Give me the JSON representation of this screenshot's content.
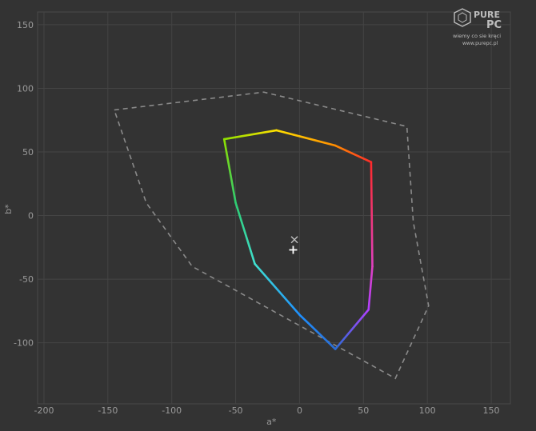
{
  "chart_data": {
    "type": "line",
    "xlabel": "a*",
    "ylabel": "b*",
    "xlim": [
      -205,
      165
    ],
    "ylim": [
      -148,
      160
    ],
    "xticks": [
      -200,
      -150,
      -100,
      -50,
      0,
      50,
      100,
      150
    ],
    "yticks": [
      150,
      100,
      50,
      0,
      -50,
      -100
    ],
    "grid": true,
    "series": [
      {
        "style": "dashed",
        "color": "#8a8a8a",
        "points": [
          [
            -145,
            83
          ],
          [
            -28,
            97
          ],
          [
            84,
            70
          ],
          [
            89,
            -5
          ],
          [
            101,
            -71
          ],
          [
            75,
            -128
          ],
          [
            -84,
            -40
          ],
          [
            -120,
            10
          ],
          [
            -145,
            83
          ]
        ]
      },
      {
        "style": "gradient",
        "colors": [
          "#ff2a2a",
          "#ff8c00",
          "#ffe000",
          "#8ee000",
          "#2ecc71",
          "#40e0d0",
          "#1e90ff",
          "#2a6dd6",
          "#b040ff",
          "#e040c0",
          "#ff2a2a"
        ],
        "points": [
          [
            56,
            42
          ],
          [
            28,
            55
          ],
          [
            -18,
            67
          ],
          [
            -59,
            60
          ],
          [
            -50,
            10
          ],
          [
            -35,
            -38
          ],
          [
            0,
            -78
          ],
          [
            28,
            -105
          ],
          [
            54,
            -74
          ],
          [
            57,
            -40
          ],
          [
            56,
            42
          ]
        ]
      }
    ],
    "markers": [
      {
        "shape": "x",
        "x": -4,
        "y": -19,
        "color": "#bfbfbf"
      },
      {
        "shape": "plus",
        "x": -5,
        "y": -27,
        "color": "#ffffff"
      }
    ]
  },
  "logo": {
    "brand_top": "PURE",
    "brand_bottom": "PC",
    "tagline": "wiemy co sie kręci",
    "url": "www.purepc.pl"
  }
}
